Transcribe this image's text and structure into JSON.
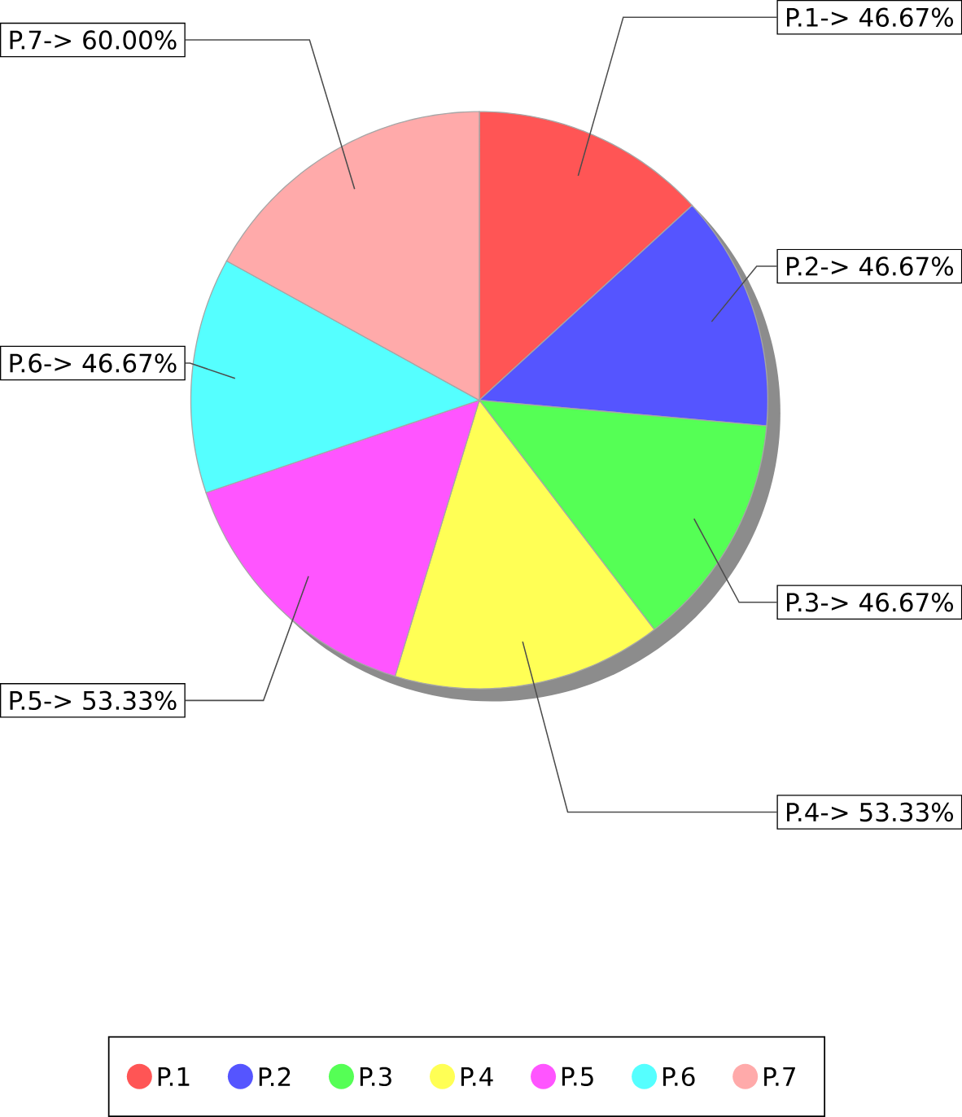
{
  "chart_data": {
    "type": "pie",
    "categories": [
      "P.1",
      "P.2",
      "P.3",
      "P.4",
      "P.5",
      "P.6",
      "P.7"
    ],
    "values": [
      46.67,
      46.67,
      46.67,
      53.33,
      53.33,
      46.67,
      60.0
    ],
    "colors": [
      "#ff5555",
      "#5555ff",
      "#55ff55",
      "#ffff55",
      "#ff55ff",
      "#55ffff",
      "#ffaaaa"
    ],
    "value_labels": [
      "P.1-> 46.67%",
      "P.2-> 46.67%",
      "P.3-> 46.67%",
      "P.4-> 53.33%",
      "P.5-> 53.33%",
      "P.6-> 46.67%",
      "P.7-> 60.00%"
    ],
    "legend": "bottom",
    "marker": "circle"
  }
}
